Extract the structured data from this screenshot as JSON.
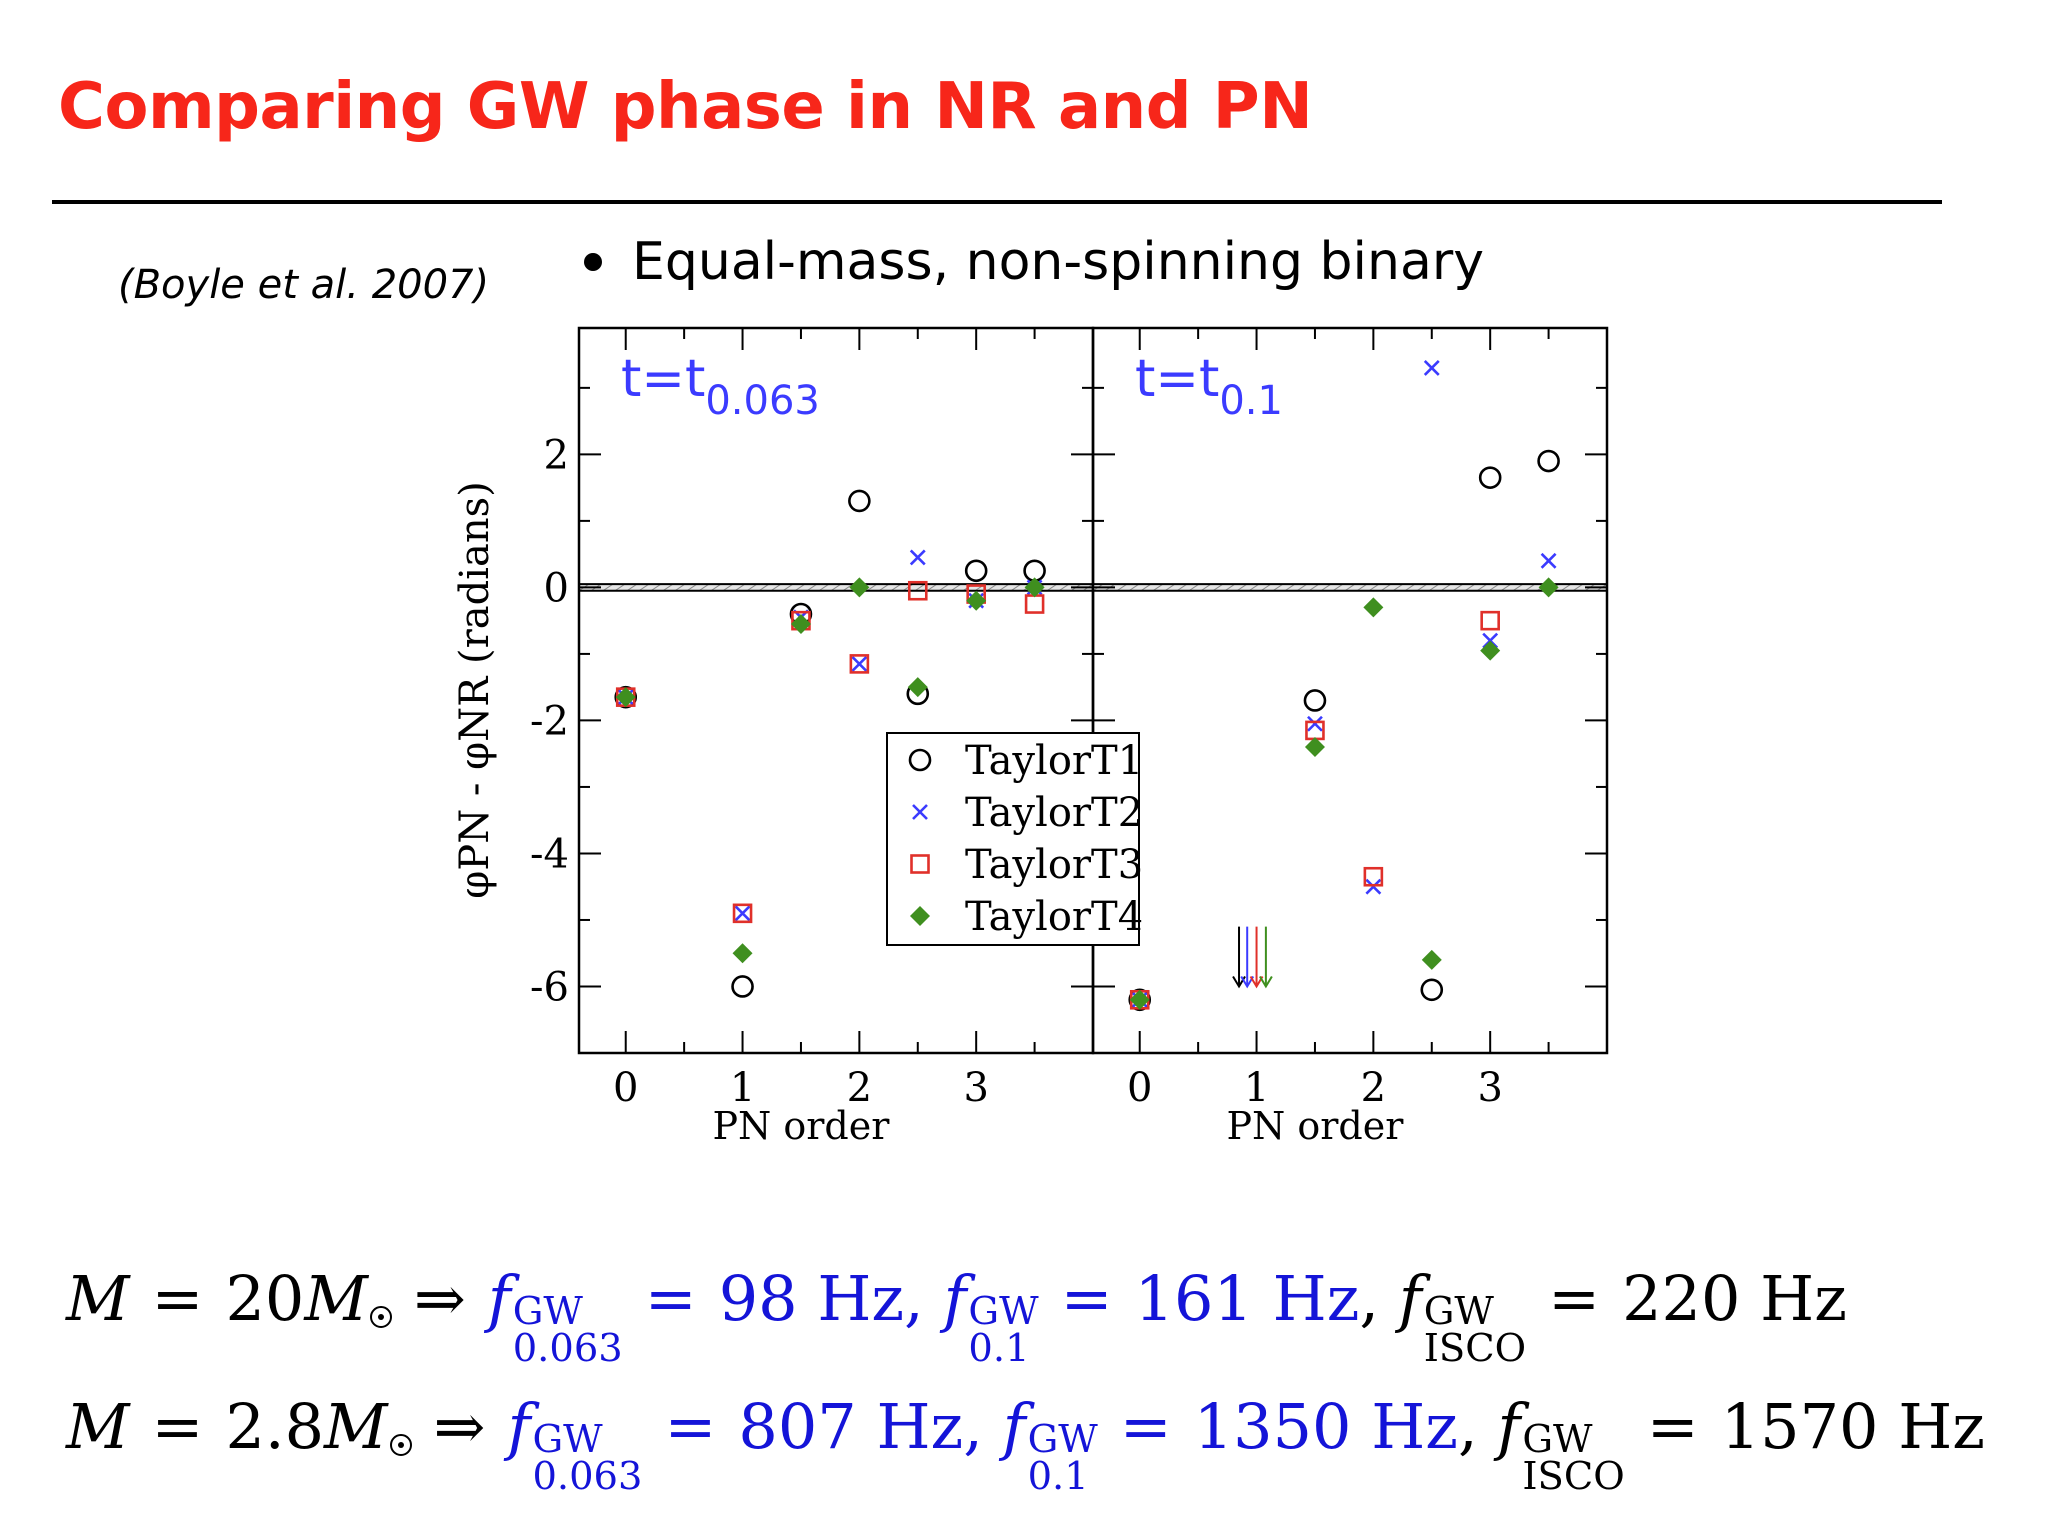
{
  "slide": {
    "title": "Comparing GW phase in NR and PN",
    "citation": "(Boyle et al. 2007)",
    "bullet": "Equal-mass, non-spinning binary"
  },
  "chart_data": {
    "type": "scatter",
    "ylabel": "φPN - φNR (radians)",
    "ylim": [
      -7,
      3.9
    ],
    "yticks": [
      2,
      0,
      -2,
      -4,
      -6
    ],
    "legend_position": "center",
    "legend": [
      "TaylorT1",
      "TaylorT2",
      "TaylorT3",
      "TaylorT4"
    ],
    "panels": [
      {
        "label_main": "t=t",
        "label_sub": "0.063",
        "xlabel": "PN order",
        "xlim": [
          -0.4,
          4
        ],
        "xticks": [
          0,
          1,
          2,
          3
        ],
        "series": [
          {
            "name": "TaylorT1",
            "marker": "circle",
            "color": "#000000",
            "points": [
              [
                0,
                -1.65
              ],
              [
                1,
                -6.0
              ],
              [
                1.5,
                -0.4
              ],
              [
                2,
                1.3
              ],
              [
                2.5,
                -1.6
              ],
              [
                3,
                0.25
              ],
              [
                3.5,
                0.25
              ]
            ]
          },
          {
            "name": "TaylorT2",
            "marker": "x",
            "color": "#3b3bff",
            "points": [
              [
                0,
                -1.65
              ],
              [
                1,
                -4.9
              ],
              [
                1.5,
                -0.45
              ],
              [
                2,
                -1.15
              ],
              [
                2.5,
                0.45
              ],
              [
                3,
                -0.2
              ],
              [
                3.5,
                0.0
              ]
            ]
          },
          {
            "name": "TaylorT3",
            "marker": "square",
            "color": "#e0302a",
            "points": [
              [
                0,
                -1.65
              ],
              [
                1,
                -4.9
              ],
              [
                1.5,
                -0.5
              ],
              [
                2,
                -1.15
              ],
              [
                2.5,
                -0.05
              ],
              [
                3,
                -0.1
              ],
              [
                3.5,
                -0.25
              ]
            ]
          },
          {
            "name": "TaylorT4",
            "marker": "diamond",
            "color": "#3f8f1f",
            "points": [
              [
                0,
                -1.65
              ],
              [
                1,
                -5.5
              ],
              [
                1.5,
                -0.55
              ],
              [
                2,
                0.0
              ],
              [
                2.5,
                -1.5
              ],
              [
                3,
                -0.2
              ],
              [
                3.5,
                0.0
              ]
            ]
          }
        ]
      },
      {
        "label_main": "t=t",
        "label_sub": "0.1",
        "xlabel": "PN order",
        "xlim": [
          -0.4,
          4
        ],
        "xticks": [
          0,
          1,
          2,
          3
        ],
        "series": [
          {
            "name": "TaylorT1",
            "marker": "circle",
            "color": "#000000",
            "points": [
              [
                0,
                -6.2
              ],
              [
                1.5,
                -1.7
              ],
              [
                2.5,
                -6.05
              ],
              [
                3,
                1.65
              ],
              [
                3.5,
                1.9
              ]
            ]
          },
          {
            "name": "TaylorT2",
            "marker": "x",
            "color": "#3b3bff",
            "points": [
              [
                0,
                -6.2
              ],
              [
                1.5,
                -2.05
              ],
              [
                2,
                -4.5
              ],
              [
                2.5,
                3.3
              ],
              [
                3,
                -0.8
              ],
              [
                3.5,
                0.4
              ]
            ]
          },
          {
            "name": "TaylorT3",
            "marker": "square",
            "color": "#e0302a",
            "points": [
              [
                0,
                -6.2
              ],
              [
                1.5,
                -2.15
              ],
              [
                2,
                -4.35
              ],
              [
                3,
                -0.5
              ]
            ]
          },
          {
            "name": "TaylorT4",
            "marker": "diamond",
            "color": "#3f8f1f",
            "points": [
              [
                0,
                -6.2
              ],
              [
                1.5,
                -2.4
              ],
              [
                2,
                -0.3
              ],
              [
                2.5,
                -5.6
              ],
              [
                3,
                -0.95
              ],
              [
                3.5,
                0.0
              ]
            ]
          }
        ],
        "arrows": [
          {
            "x": 0.85,
            "color": "#000000"
          },
          {
            "x": 0.92,
            "color": "#3b3bff"
          },
          {
            "x": 1.0,
            "color": "#e0302a"
          },
          {
            "x": 1.08,
            "color": "#3f8f1f"
          }
        ]
      }
    ]
  },
  "equations": [
    {
      "mass": "20",
      "f1_sub": "0.063",
      "f1": "98",
      "f2_sub": "0.1",
      "f2": "161",
      "f3_sub": "ISCO",
      "f3": "220"
    },
    {
      "mass": "2.8",
      "f1_sub": "0.063",
      "f1": "807",
      "f2_sub": "0.1",
      "f2": "1350",
      "f3_sub": "ISCO",
      "f3": "1570"
    }
  ],
  "eq_symbols": {
    "M": "M",
    "f": "f",
    "sup": "GW",
    "hz": "Hz",
    "eq": "=",
    "implies": "⇒"
  }
}
